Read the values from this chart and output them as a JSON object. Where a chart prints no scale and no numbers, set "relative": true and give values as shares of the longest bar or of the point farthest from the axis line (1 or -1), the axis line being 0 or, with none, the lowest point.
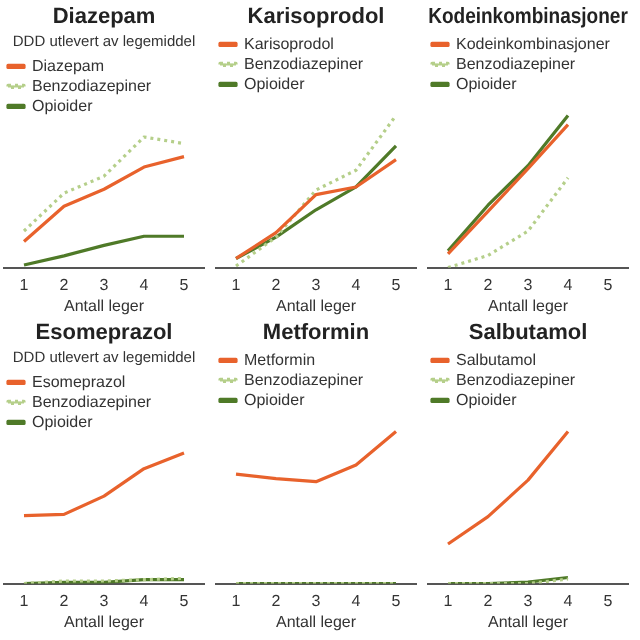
{
  "chart_data": [
    {
      "type": "line",
      "title": "Diazepam",
      "ylabel": "DDD utlevert av legemiddel",
      "xlabel": "Antall leger",
      "categories": [
        "1",
        "2",
        "3",
        "4",
        "5"
      ],
      "relative": true,
      "legend": "top left",
      "grid": false,
      "marker": "none",
      "series": [
        {
          "name": "Diazepam",
          "color": "#e8622c",
          "line_style": "solid",
          "values": [
            0.2,
            0.47,
            0.6,
            0.77,
            0.85
          ]
        },
        {
          "name": "Benzodiazepiner",
          "color": "#b5cf8a",
          "line_style": "dotted",
          "values": [
            0.28,
            0.57,
            0.7,
            1,
            0.95
          ]
        },
        {
          "name": "Opioider",
          "color": "#4f7a28",
          "line_style": "solid",
          "values": [
            0.02,
            0.09,
            0.17,
            0.24,
            0.24
          ]
        }
      ]
    },
    {
      "type": "line",
      "title": "Karisoprodol",
      "xlabel": "Antall leger",
      "categories": [
        "1",
        "2",
        "3",
        "4",
        "5"
      ],
      "relative": true,
      "legend": "top left",
      "grid": false,
      "marker": "none",
      "series": [
        {
          "name": "Karisoprodol",
          "color": "#e8622c",
          "line_style": "solid",
          "values": [
            0.06,
            0.23,
            0.48,
            0.53,
            0.71
          ]
        },
        {
          "name": "Benzodiazepiner",
          "color": "#b5cf8a",
          "line_style": "dotted",
          "values": [
            0.01,
            0.2,
            0.51,
            0.64,
            1
          ]
        },
        {
          "name": "Opioider",
          "color": "#4f7a28",
          "line_style": "solid",
          "values": [
            0.06,
            0.2,
            0.38,
            0.53,
            0.8
          ]
        }
      ]
    },
    {
      "type": "line",
      "title": "Kodeinkombinasjoner",
      "xlabel": "Antall leger",
      "categories": [
        "1",
        "2",
        "3",
        "4",
        "5"
      ],
      "relative": true,
      "legend": "top left",
      "grid": false,
      "marker": "none",
      "series": [
        {
          "name": "Kodeinkombinasjoner",
          "color": "#e8622c",
          "line_style": "solid",
          "values": [
            0.09,
            0.37,
            0.65,
            0.94,
            null
          ]
        },
        {
          "name": "Benzodiazepiner",
          "color": "#b5cf8a",
          "line_style": "dotted",
          "values": [
            0,
            0.08,
            0.24,
            0.59,
            null
          ]
        },
        {
          "name": "Opioider",
          "color": "#4f7a28",
          "line_style": "solid",
          "values": [
            0.11,
            0.41,
            0.67,
            1,
            null
          ]
        }
      ]
    },
    {
      "type": "line",
      "title": "Esomeprazol",
      "ylabel": "DDD utlevert av legemiddel",
      "xlabel": "Antall leger",
      "categories": [
        "1",
        "2",
        "3",
        "4",
        "5"
      ],
      "relative": true,
      "legend": "top left",
      "grid": false,
      "marker": "none",
      "series": [
        {
          "name": "Esomeprazol",
          "color": "#e8622c",
          "line_style": "solid",
          "values": [
            0.52,
            0.53,
            0.67,
            0.88,
            1
          ]
        },
        {
          "name": "Benzodiazepiner",
          "color": "#b5cf8a",
          "line_style": "dotted",
          "values": [
            0,
            0.02,
            0.02,
            0.03,
            0.04
          ]
        },
        {
          "name": "Opioider",
          "color": "#4f7a28",
          "line_style": "solid",
          "values": [
            0,
            0.01,
            0.01,
            0.03,
            0.03
          ]
        }
      ]
    },
    {
      "type": "line",
      "title": "Metformin",
      "xlabel": "Antall leger",
      "categories": [
        "1",
        "2",
        "3",
        "4",
        "5"
      ],
      "relative": true,
      "legend": "top left",
      "grid": false,
      "marker": "none",
      "series": [
        {
          "name": "Metformin",
          "color": "#e8622c",
          "line_style": "solid",
          "values": [
            0.72,
            0.69,
            0.67,
            0.78,
            1
          ]
        },
        {
          "name": "Benzodiazepiner",
          "color": "#b5cf8a",
          "line_style": "dotted",
          "values": [
            0,
            0,
            0,
            0,
            0
          ]
        },
        {
          "name": "Opioider",
          "color": "#4f7a28",
          "line_style": "solid",
          "values": [
            0,
            0,
            0,
            0,
            0
          ]
        }
      ]
    },
    {
      "type": "line",
      "title": "Salbutamol",
      "xlabel": "Antall leger",
      "categories": [
        "1",
        "2",
        "3",
        "4",
        "5"
      ],
      "relative": true,
      "legend": "top left",
      "grid": false,
      "marker": "none",
      "series": [
        {
          "name": "Salbutamol",
          "color": "#e8622c",
          "line_style": "solid",
          "values": [
            0.26,
            0.44,
            0.68,
            1,
            null
          ]
        },
        {
          "name": "Benzodiazepiner",
          "color": "#b5cf8a",
          "line_style": "dotted",
          "values": [
            0,
            0,
            0,
            0.03,
            null
          ]
        },
        {
          "name": "Opioider",
          "color": "#4f7a28",
          "line_style": "solid",
          "values": [
            0,
            0,
            0.01,
            0.04,
            null
          ]
        }
      ]
    }
  ]
}
